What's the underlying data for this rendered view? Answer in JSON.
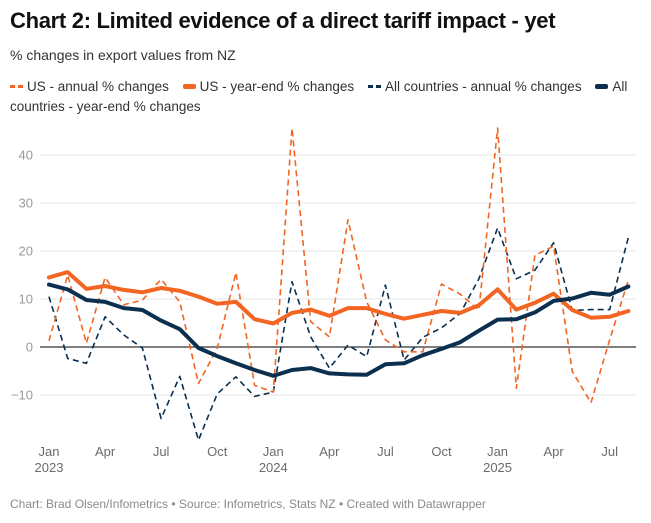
{
  "title": "Chart 2: Limited evidence of a direct tariff impact - yet",
  "subtitle": "% changes in export values from NZ",
  "footer": "Chart: Brad Olsen/Infometrics • Source: Infometrics, Stats NZ • Created with Datawrapper",
  "colors": {
    "us": "#f26522",
    "all": "#0b2f4f",
    "grid": "#e6e6e6",
    "zero": "#333333"
  },
  "chart_data": {
    "type": "line",
    "title": "Chart 2: Limited evidence of a direct tariff impact - yet",
    "subtitle": "% changes in export values from NZ",
    "xlabel": "",
    "ylabel": "",
    "ylim": [
      -20,
      45
    ],
    "yticks": [
      -10,
      0,
      10,
      20,
      30,
      40
    ],
    "ytick_labels": [
      "−10",
      "0",
      "10",
      "20",
      "30",
      "40"
    ],
    "grid": true,
    "legend_position": "top-left",
    "x": [
      "2023-01",
      "2023-02",
      "2023-03",
      "2023-04",
      "2023-05",
      "2023-06",
      "2023-07",
      "2023-08",
      "2023-09",
      "2023-10",
      "2023-11",
      "2023-12",
      "2024-01",
      "2024-02",
      "2024-03",
      "2024-04",
      "2024-05",
      "2024-06",
      "2024-07",
      "2024-08",
      "2024-09",
      "2024-10",
      "2024-11",
      "2024-12",
      "2025-01",
      "2025-02",
      "2025-03",
      "2025-04",
      "2025-05",
      "2025-06",
      "2025-07",
      "2025-08"
    ],
    "xticks": [
      {
        "index": 0,
        "label": "Jan",
        "sub": "2023"
      },
      {
        "index": 3,
        "label": "Apr",
        "sub": ""
      },
      {
        "index": 6,
        "label": "Jul",
        "sub": ""
      },
      {
        "index": 9,
        "label": "Oct",
        "sub": ""
      },
      {
        "index": 12,
        "label": "Jan",
        "sub": "2024"
      },
      {
        "index": 15,
        "label": "Apr",
        "sub": ""
      },
      {
        "index": 18,
        "label": "Jul",
        "sub": ""
      },
      {
        "index": 21,
        "label": "Oct",
        "sub": ""
      },
      {
        "index": 24,
        "label": "Jan",
        "sub": "2025"
      },
      {
        "index": 27,
        "label": "Apr",
        "sub": ""
      },
      {
        "index": 30,
        "label": "Jul",
        "sub": ""
      }
    ],
    "series": [
      {
        "name": "US - annual % changes",
        "key": "us-annual",
        "color": "#f26522",
        "style": "dashed",
        "values": [
          1.3,
          15.0,
          0.8,
          14.5,
          8.8,
          9.8,
          14.1,
          9.4,
          -7.6,
          -0.3,
          15.5,
          -8.0,
          -9.4,
          45.6,
          5.3,
          2.1,
          26.5,
          9.4,
          1.5,
          -1.0,
          -1.0,
          13.1,
          11.0,
          7.7,
          45.6,
          -8.6,
          19.1,
          21.0,
          -5.1,
          -11.6,
          1.5,
          14.0
        ]
      },
      {
        "name": "US - year-end % changes",
        "key": "us-year-end",
        "color": "#f26522",
        "style": "solid",
        "values": [
          14.5,
          15.6,
          12.1,
          12.7,
          11.9,
          11.4,
          12.3,
          11.7,
          10.5,
          9.0,
          9.4,
          5.8,
          4.9,
          7.1,
          7.8,
          6.5,
          8.1,
          8.1,
          6.9,
          5.9,
          6.7,
          7.5,
          7.1,
          8.7,
          12.0,
          7.8,
          9.2,
          11.1,
          7.7,
          6.1,
          6.3,
          7.5
        ]
      },
      {
        "name": "All countries - annual % changes",
        "key": "all-annual",
        "color": "#0b2f4f",
        "style": "dashed",
        "values": [
          10.5,
          -2.4,
          -3.4,
          6.3,
          2.5,
          -0.2,
          -14.9,
          -6.1,
          -19.4,
          -9.8,
          -6.2,
          -10.3,
          -9.4,
          13.6,
          2.1,
          -4.4,
          0.4,
          -2.0,
          12.9,
          -2.7,
          2.0,
          4.0,
          7.0,
          14.2,
          24.8,
          14.2,
          16.0,
          21.7,
          7.6,
          7.8,
          7.8,
          22.9
        ]
      },
      {
        "name": "All countries - year-end % changes",
        "key": "all-year-end",
        "color": "#0b2f4f",
        "style": "solid",
        "values": [
          13.0,
          12.0,
          9.8,
          9.4,
          8.1,
          7.7,
          5.5,
          3.7,
          -0.2,
          -1.9,
          -3.4,
          -4.8,
          -6.0,
          -4.8,
          -4.4,
          -5.5,
          -5.7,
          -5.8,
          -3.6,
          -3.4,
          -1.7,
          -0.4,
          1.0,
          3.4,
          5.7,
          5.8,
          7.2,
          9.6,
          10.1,
          11.3,
          10.9,
          12.6
        ]
      }
    ]
  }
}
